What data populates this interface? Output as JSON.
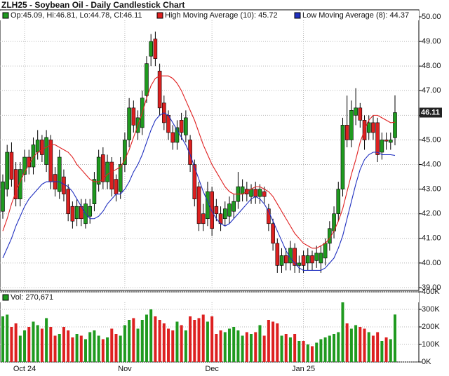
{
  "chart_data": {
    "type": "candlestick",
    "title": "ZLH25 - Soybean Oil - Daily Candlestick Chart",
    "ohlc_legend": "Op:45.09, Hi:46.81, Lo:44.78, Cl:46.11",
    "categories": [
      null,
      null,
      null,
      null,
      null,
      "Oct 24",
      null,
      null,
      null,
      null,
      null,
      null,
      null,
      null,
      null,
      null,
      null,
      null,
      null,
      null,
      null,
      null,
      null,
      null,
      null,
      null,
      null,
      null,
      "Nov",
      null,
      null,
      null,
      null,
      null,
      null,
      null,
      null,
      null,
      null,
      null,
      null,
      null,
      null,
      null,
      null,
      null,
      null,
      null,
      "Dec",
      null,
      null,
      null,
      null,
      null,
      null,
      null,
      null,
      null,
      null,
      null,
      null,
      null,
      null,
      null,
      null,
      null,
      null,
      null,
      null,
      "Jan 25",
      null,
      null,
      null,
      null,
      null,
      null,
      null,
      null,
      null,
      null,
      null,
      null,
      null,
      null,
      null,
      null,
      null,
      null,
      null,
      null,
      null
    ],
    "open": [
      42.1,
      43.0,
      44.5,
      43.8,
      42.6,
      43.6,
      44.3,
      43.9,
      44.5,
      45.0,
      44.0,
      45.0,
      43.6,
      42.9,
      43.5,
      43.0,
      42.3,
      41.8,
      42.3,
      41.6,
      41.9,
      42.4,
      43.2,
      44.4,
      43.3,
      44.1,
      43.4,
      42.9,
      44.0,
      45.0,
      46.3,
      45.3,
      45.5,
      46.8,
      48.4,
      49.1,
      47.8,
      46.5,
      46.0,
      45.3,
      44.9,
      45.8,
      45.2,
      45.0,
      44.0,
      43.1,
      42.0,
      41.8,
      42.9,
      42.3,
      42.0,
      41.8,
      41.9,
      42.1,
      42.5,
      42.8,
      43.0,
      42.7,
      43.0,
      42.7,
      42.9,
      42.2,
      41.6,
      40.8,
      39.9,
      40.3,
      40.0,
      40.6,
      39.9,
      40.3,
      40.0,
      40.3,
      40.1,
      40.0,
      40.2,
      40.8,
      41.3,
      42.0,
      43.0,
      45.6,
      45.0,
      46.0,
      46.3,
      45.8,
      45.3,
      45.7,
      45.7,
      44.5,
      45.0,
      44.9,
      45.09
    ],
    "high": [
      43.6,
      44.8,
      44.9,
      44.1,
      44.1,
      44.6,
      44.6,
      45.1,
      45.4,
      45.2,
      45.4,
      45.2,
      43.9,
      44.6,
      43.8,
      43.2,
      42.5,
      42.6,
      42.6,
      42.6,
      42.6,
      43.7,
      44.6,
      44.7,
      44.4,
      44.3,
      43.6,
      44.3,
      45.3,
      46.7,
      46.6,
      46.2,
      47.0,
      48.4,
      49.3,
      49.4,
      48.1,
      46.8,
      46.2,
      45.6,
      45.8,
      46.1,
      46.2,
      45.2,
      44.2,
      43.3,
      42.4,
      43.3,
      43.1,
      42.6,
      42.3,
      42.5,
      42.7,
      42.8,
      43.7,
      43.4,
      43.3,
      43.2,
      43.3,
      43.2,
      43.1,
      42.4,
      41.8,
      41.0,
      40.6,
      40.6,
      40.9,
      40.8,
      40.3,
      40.5,
      40.6,
      40.5,
      40.7,
      40.7,
      41.0,
      41.7,
      42.3,
      43.3,
      45.9,
      46.8,
      46.6,
      47.1,
      46.5,
      46.0,
      46.0,
      46.0,
      45.9,
      45.3,
      45.3,
      45.3,
      46.81
    ],
    "low": [
      41.8,
      42.7,
      43.1,
      42.3,
      42.3,
      43.3,
      43.6,
      43.6,
      44.2,
      44.1,
      43.7,
      43.0,
      42.7,
      42.6,
      42.5,
      41.7,
      41.4,
      41.5,
      41.5,
      41.4,
      41.6,
      42.1,
      42.9,
      43.0,
      43.0,
      42.7,
      42.5,
      42.6,
      43.7,
      44.7,
      45.3,
      45.0,
      45.2,
      46.5,
      48.0,
      48.0,
      46.0,
      45.4,
      45.0,
      44.6,
      44.6,
      45.0,
      44.9,
      43.7,
      42.3,
      41.3,
      41.3,
      41.5,
      41.1,
      41.7,
      41.3,
      41.5,
      41.6,
      41.8,
      42.2,
      42.5,
      42.5,
      42.4,
      42.4,
      42.4,
      42.4,
      41.3,
      40.5,
      39.6,
      39.6,
      39.7,
      39.7,
      39.6,
      39.6,
      39.6,
      39.7,
      39.7,
      39.8,
      39.6,
      39.9,
      40.5,
      41.0,
      41.7,
      42.7,
      44.7,
      44.7,
      45.6,
      45.5,
      44.6,
      45.0,
      45.0,
      44.1,
      44.2,
      44.6,
      44.6,
      44.78
    ],
    "close": [
      43.3,
      44.5,
      43.4,
      42.6,
      43.8,
      44.3,
      43.9,
      44.8,
      45.0,
      44.4,
      45.1,
      43.3,
      43.0,
      44.3,
      42.8,
      42.0,
      41.7,
      42.3,
      41.8,
      42.4,
      42.3,
      43.4,
      44.3,
      43.3,
      44.1,
      43.0,
      42.8,
      44.0,
      45.0,
      46.3,
      45.6,
      45.9,
      46.7,
      48.1,
      49.0,
      48.3,
      46.3,
      45.7,
      45.3,
      44.9,
      45.5,
      45.3,
      45.9,
      44.0,
      42.6,
      41.6,
      41.6,
      42.9,
      41.4,
      42.0,
      41.6,
      42.2,
      42.4,
      42.5,
      43.1,
      43.1,
      42.8,
      43.0,
      42.7,
      43.0,
      42.7,
      41.6,
      40.8,
      39.9,
      40.3,
      40.0,
      40.6,
      39.9,
      40.0,
      39.9,
      40.3,
      40.0,
      40.4,
      40.4,
      40.8,
      41.4,
      42.0,
      43.0,
      45.6,
      45.0,
      46.2,
      46.3,
      45.8,
      45.0,
      45.7,
      45.3,
      44.4,
      45.0,
      44.95,
      45.0,
      46.11
    ],
    "up_color": "#1f9a1f",
    "down_color": "#dd2020",
    "series": [
      {
        "name": "High Moving Average (10): 45.72",
        "color": "#e02020",
        "values": [
          41.3,
          41.8,
          42.4,
          42.9,
          43.3,
          43.7,
          44.0,
          44.3,
          44.5,
          44.6,
          44.7,
          44.8,
          44.8,
          44.7,
          44.6,
          44.5,
          44.3,
          44.0,
          43.8,
          43.6,
          43.4,
          43.3,
          43.3,
          43.4,
          43.6,
          43.7,
          43.8,
          43.9,
          44.2,
          44.6,
          45.1,
          45.6,
          46.1,
          46.7,
          47.2,
          47.5,
          47.6,
          47.6,
          47.6,
          47.5,
          47.3,
          47.0,
          46.6,
          46.2,
          45.8,
          45.3,
          44.8,
          44.4,
          44.0,
          43.7,
          43.4,
          43.1,
          42.9,
          42.8,
          42.8,
          42.8,
          42.9,
          43.0,
          43.1,
          43.1,
          43.0,
          42.9,
          42.7,
          42.4,
          42.1,
          41.8,
          41.5,
          41.2,
          41.0,
          40.8,
          40.7,
          40.6,
          40.6,
          40.7,
          40.8,
          41.0,
          41.3,
          41.7,
          42.2,
          42.9,
          43.6,
          44.2,
          44.9,
          45.4,
          45.8,
          46.0,
          46.0,
          45.9,
          45.8,
          45.7,
          45.72
        ]
      },
      {
        "name": "Low Moving Average (8): 44.37",
        "color": "#2030c0",
        "values": [
          40.2,
          40.6,
          41.0,
          41.5,
          41.9,
          42.3,
          42.6,
          42.8,
          43.0,
          43.2,
          43.3,
          43.3,
          43.3,
          43.3,
          43.2,
          43.1,
          42.9,
          42.6,
          42.3,
          42.0,
          41.8,
          41.8,
          41.9,
          42.1,
          42.4,
          42.6,
          42.8,
          42.8,
          43.0,
          43.3,
          43.7,
          44.0,
          44.4,
          44.9,
          45.4,
          45.8,
          46.0,
          46.1,
          46.0,
          45.7,
          45.4,
          45.1,
          44.8,
          44.4,
          43.9,
          43.4,
          42.9,
          42.5,
          42.1,
          41.8,
          41.6,
          41.5,
          41.6,
          41.8,
          42.0,
          42.2,
          42.4,
          42.6,
          42.7,
          42.6,
          42.4,
          42.1,
          41.7,
          41.3,
          40.9,
          40.5,
          40.2,
          40.0,
          39.8,
          39.7,
          39.7,
          39.7,
          39.7,
          39.7,
          39.8,
          40.0,
          40.2,
          40.6,
          41.1,
          41.8,
          42.5,
          43.2,
          43.8,
          44.2,
          44.4,
          44.5,
          44.5,
          44.4,
          44.4,
          44.4,
          44.37
        ]
      }
    ],
    "ylim": [
      39,
      50
    ],
    "yticks": [
      {
        "value": 39,
        "label": "39.00"
      },
      {
        "value": 40,
        "label": "40.00"
      },
      {
        "value": 41,
        "label": "41.00"
      },
      {
        "value": 42,
        "label": "42.00"
      },
      {
        "value": 43,
        "label": "43.00"
      },
      {
        "value": 44,
        "label": "44.00"
      },
      {
        "value": 45,
        "label": "45.00"
      },
      {
        "value": 46,
        "label": "46.00"
      },
      {
        "value": 47,
        "label": "47.00"
      },
      {
        "value": 48,
        "label": "48.00"
      },
      {
        "value": 49,
        "label": "49.00"
      },
      {
        "value": 50,
        "label": "50.00"
      }
    ],
    "grid": true,
    "volume": {
      "label": "Vol: 270,671",
      "values": [
        260000,
        270000,
        200000,
        220000,
        150000,
        180000,
        200000,
        230000,
        210000,
        190000,
        250000,
        200000,
        150000,
        160000,
        200000,
        180000,
        140000,
        160000,
        150000,
        130000,
        170000,
        180000,
        150000,
        130000,
        140000,
        190000,
        160000,
        150000,
        210000,
        240000,
        250000,
        190000,
        240000,
        270000,
        300000,
        260000,
        240000,
        220000,
        190000,
        180000,
        230000,
        210000,
        180000,
        260000,
        240000,
        250000,
        270000,
        230000,
        260000,
        160000,
        180000,
        170000,
        190000,
        200000,
        180000,
        150000,
        170000,
        160000,
        170000,
        210000,
        150000,
        240000,
        230000,
        220000,
        150000,
        160000,
        140000,
        160000,
        120000,
        120000,
        100000,
        90000,
        110000,
        130000,
        140000,
        150000,
        160000,
        170000,
        390000,
        220000,
        190000,
        210000,
        200000,
        190000,
        170000,
        150000,
        170000,
        120000,
        140000,
        130000,
        270671
      ],
      "ylim": [
        0,
        400000
      ],
      "yticks": [
        {
          "value": 0,
          "label": "0K"
        },
        {
          "value": 100000,
          "label": "100K"
        },
        {
          "value": 200000,
          "label": "200K"
        },
        {
          "value": 300000,
          "label": "300K"
        },
        {
          "value": 400000,
          "label": "400K"
        }
      ]
    }
  }
}
